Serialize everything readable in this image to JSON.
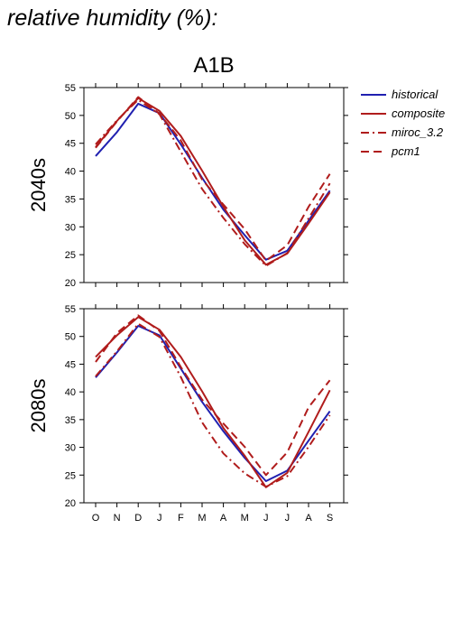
{
  "page_title": "relative humidity (%):",
  "chart_data": {
    "type": "line",
    "scenario": "A1B",
    "categories": [
      "O",
      "N",
      "D",
      "J",
      "F",
      "M",
      "A",
      "M",
      "J",
      "J",
      "A",
      "S"
    ],
    "ylim": [
      20,
      55
    ],
    "yticks": [
      20,
      25,
      30,
      35,
      40,
      45,
      50,
      55
    ],
    "grid": false,
    "legend_position": "right",
    "legend": [
      {
        "name": "historical",
        "color": "#2020b0",
        "style": "solid"
      },
      {
        "name": "composite",
        "color": "#b01c1c",
        "style": "solid"
      },
      {
        "name": "miroc_3.2",
        "color": "#b01c1c",
        "style": "dashdot"
      },
      {
        "name": "pcm1",
        "color": "#b01c1c",
        "style": "dashed"
      }
    ],
    "panels": [
      {
        "label": "2040s",
        "series": [
          {
            "name": "historical",
            "values": [
              42.7,
              47,
              52.1,
              50.4,
              44.8,
              38.8,
              33.1,
              28.5,
              24.1,
              25.7,
              31.1,
              36.5
            ]
          },
          {
            "name": "composite",
            "values": [
              44.3,
              49,
              53.1,
              50.8,
              46.3,
              40.1,
              33.6,
              27.6,
              23.2,
              25.2,
              30.6,
              36.2
            ]
          },
          {
            "name": "miroc_3.2",
            "values": [
              44.8,
              49.1,
              52.8,
              50.2,
              43.5,
              36.8,
              31.6,
              26.9,
              23,
              25.3,
              31.5,
              37.8
            ]
          },
          {
            "name": "pcm1",
            "values": [
              44.2,
              48.9,
              53.3,
              50.3,
              45.5,
              38.5,
              34,
              29.6,
              23.9,
              26.7,
              33.6,
              39.5
            ]
          }
        ]
      },
      {
        "label": "2080s",
        "series": [
          {
            "name": "historical",
            "values": [
              42.6,
              47.1,
              51.9,
              50.2,
              44.2,
              38.2,
              32.9,
              28.1,
              23.9,
              25.8,
              31.2,
              36.5
            ]
          },
          {
            "name": "composite",
            "values": [
              46.3,
              50.2,
              53.5,
              51.2,
              46.3,
              40.1,
              33.5,
              28.5,
              22.8,
              25.4,
              32.8,
              40.3
            ]
          },
          {
            "name": "miroc_3.2",
            "values": [
              42.8,
              47.3,
              52.3,
              49.9,
              42.7,
              34.5,
              28.9,
              25.3,
              22.9,
              24.8,
              30.1,
              35.8
            ]
          },
          {
            "name": "pcm1",
            "values": [
              45.4,
              50.6,
              53.8,
              51,
              44.5,
              38.6,
              34.3,
              30.1,
              25,
              29.1,
              37.2,
              42.1
            ]
          }
        ]
      }
    ]
  }
}
